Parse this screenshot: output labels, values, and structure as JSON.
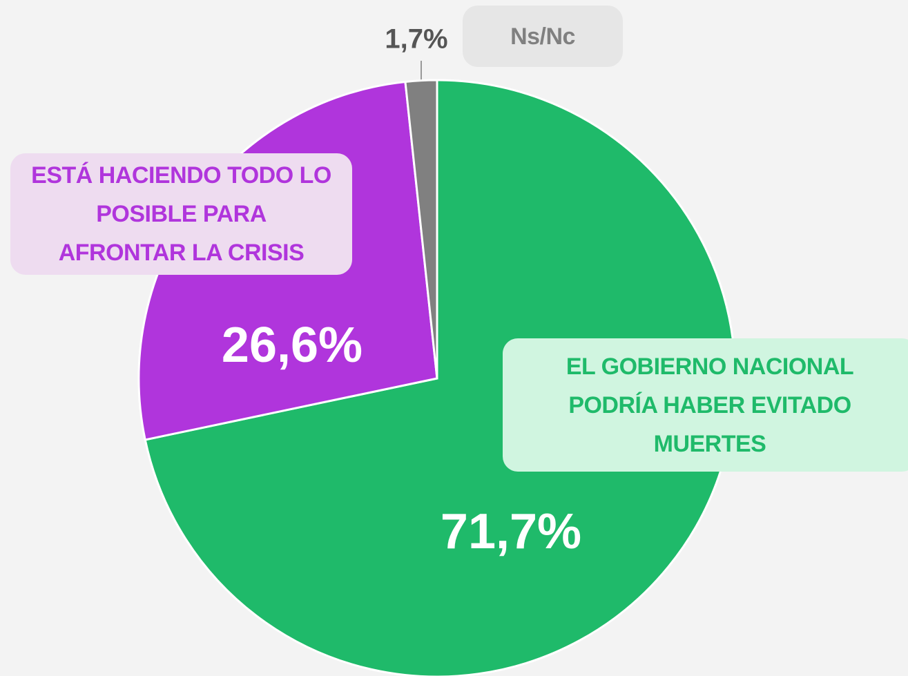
{
  "chart_data": {
    "type": "pie",
    "categories": [
      "EL GOBIERNO NACIONAL PODRÍA HABER EVITADO MUERTES",
      "ESTÁ HACIENDO TODO LO POSIBLE PARA AFRONTAR LA CRISIS",
      "Ns/Nc"
    ],
    "values": [
      71.7,
      26.6,
      1.7
    ],
    "value_labels": [
      "71,7%",
      "26,6%",
      "1,7%"
    ],
    "colors": [
      "#1fba6a",
      "#b035dc",
      "#808080"
    ]
  }
}
